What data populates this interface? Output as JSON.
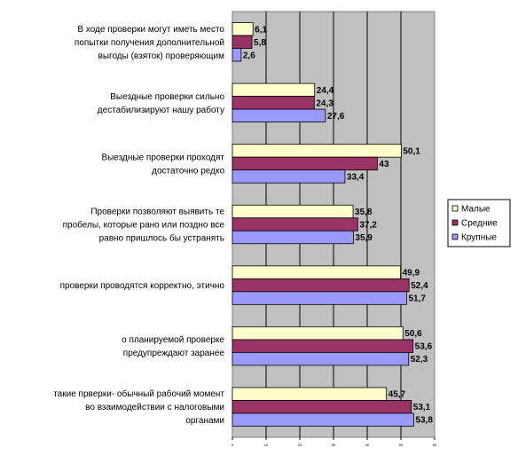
{
  "chart_data": {
    "type": "bar",
    "orientation": "horizontal",
    "categories": [
      "В ходе проверки могут иметь место попытки получения дополнительной выгоды (взяток) проверяющим",
      "Выездные проверки сильно дестабилизируют нашу работу",
      "Выездные проверки проходят достаточно редко",
      "Проверки позволяют выявить те пробелы, которые рано или поздно все равно пришлось бы устранять",
      "проверки проводятся корректно, этично",
      "о планируемой проверке предупреждают заранее",
      "такие прверки- обычный рабочий момент во взаимодействии с налоговыми органами"
    ],
    "category_lines": [
      [
        "В ходе проверки могут иметь место",
        "попытки получения дополнительной",
        "выгоды (взяток) проверяющим"
      ],
      [
        "Выездные проверки сильно",
        "дестабилизируют нашу работу"
      ],
      [
        "Выездные проверки проходят",
        "достаточно редко"
      ],
      [
        "Проверки позволяют выявить те",
        "пробелы, которые рано или поздно все",
        "равно пришлось бы устранять"
      ],
      [
        "проверки проводятся корректно, этично"
      ],
      [
        "о планируемой проверке",
        "предупреждают заранее"
      ],
      [
        "такие прверки- обычный рабочий момент",
        "во взаимодействии с налоговыми",
        "органами"
      ]
    ],
    "series": [
      {
        "name": "Малые",
        "values": [
          6.1,
          24.4,
          50.1,
          35.8,
          49.9,
          50.6,
          45.7
        ],
        "labels": [
          "6,1",
          "24,4",
          "50,1",
          "35,8",
          "49,9",
          "50,6",
          "45,7"
        ],
        "color": "#ffffcc"
      },
      {
        "name": "Средние",
        "values": [
          5.8,
          24.3,
          43,
          37.2,
          52.4,
          53.6,
          53.1
        ],
        "labels": [
          "5,8",
          "24,3",
          "43",
          "37,2",
          "52,4",
          "53,6",
          "53,1"
        ],
        "color": "#993366"
      },
      {
        "name": "Крупные",
        "values": [
          2.6,
          27.6,
          33.4,
          35.9,
          51.7,
          52.3,
          53.8
        ],
        "labels": [
          "2,6",
          "27,6",
          "33,4",
          "35,9",
          "51,7",
          "52,3",
          "53,8"
        ],
        "color": "#9999ff"
      }
    ],
    "xlim": [
      0,
      60
    ],
    "xticks": [
      "0",
      "10",
      "20",
      "30",
      "40",
      "50",
      "60"
    ],
    "plot_background": "#c0c0c0",
    "grid": true,
    "legend": "right"
  }
}
